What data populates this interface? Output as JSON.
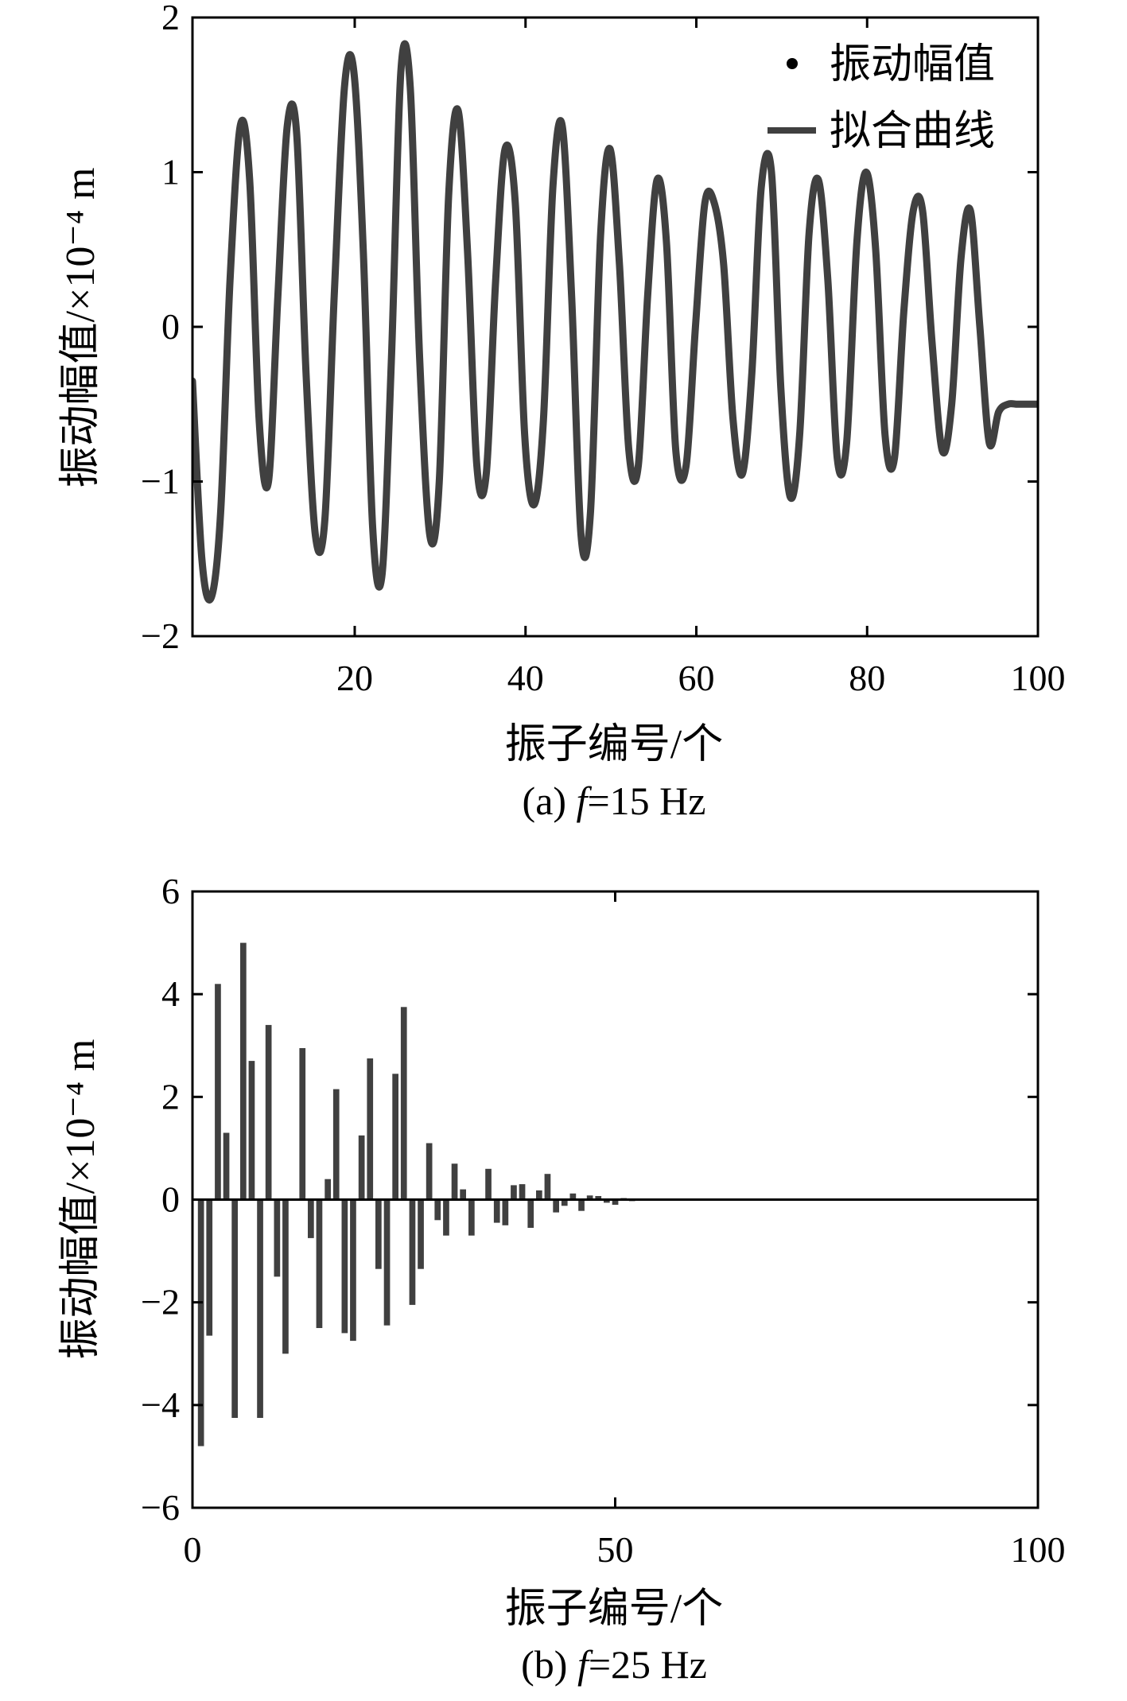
{
  "chart_data": [
    {
      "type": "line",
      "xlabel": "振子编号/个",
      "ylabel": "振动幅值/×10⁻⁴ m",
      "caption": {
        "prefix": "(a) ",
        "var": "f",
        "suffix": "=15 Hz"
      },
      "xlim": [
        1,
        100
      ],
      "ylim": [
        -2,
        2
      ],
      "xticks": [
        20,
        40,
        60,
        80,
        100
      ],
      "yticks": [
        -2,
        -1,
        0,
        1,
        2
      ],
      "grid": false,
      "legend": {
        "position": "top-right",
        "entries": [
          "振动幅值",
          "拟合曲线"
        ]
      },
      "series": [
        {
          "name": "拟合曲线",
          "color": "#404040",
          "x": [
            1,
            2.1,
            3.2,
            4.3,
            5.4,
            6.6,
            7.7,
            8.8,
            9.9,
            11.0,
            12.1,
            13.2,
            14.3,
            15.4,
            16.5,
            17.6,
            18.8,
            19.9,
            21.0,
            22.1,
            23.2,
            24.3,
            25.4,
            26.5,
            27.6,
            28.8,
            29.9,
            31.0,
            32.1,
            33.2,
            34.3,
            35.4,
            36.5,
            37.6,
            38.8,
            39.9,
            41.0,
            42.1,
            43.2,
            44.3,
            45.4,
            46.5,
            47.6,
            48.8,
            49.9,
            51.0,
            52.1,
            53.2,
            54.3,
            55.4,
            56.5,
            57.6,
            58.8,
            59.9,
            61.0,
            62.1,
            63.2,
            64.3,
            65.4,
            66.5,
            67.6,
            68.8,
            69.9,
            71.0,
            72.1,
            73.2,
            74.3,
            75.4,
            76.5,
            77.6,
            78.8,
            79.9,
            81.0,
            82.1,
            83.2,
            84.3,
            85.4,
            86.5,
            87.6,
            88.8,
            89.9,
            91.0,
            92.1,
            93.2,
            94.3,
            95.4,
            96.5,
            97.6,
            98.8,
            99.9
          ],
          "values": [
            -0.35,
            -1.5,
            -1.75,
            -1.2,
            0.3,
            1.3,
            0.95,
            -0.6,
            -1.0,
            0.2,
            1.3,
            1.25,
            -0.3,
            -1.35,
            -1.25,
            0.2,
            1.55,
            1.65,
            0.5,
            -1.3,
            -1.6,
            -0.2,
            1.65,
            1.55,
            -0.2,
            -1.35,
            -1.0,
            0.85,
            1.4,
            0.5,
            -0.9,
            -0.95,
            0.3,
            1.15,
            0.8,
            -0.7,
            -1.15,
            -0.6,
            0.9,
            1.3,
            0.2,
            -1.35,
            -1.2,
            0.6,
            1.15,
            0.4,
            -0.8,
            -0.9,
            0.2,
            0.95,
            0.55,
            -0.8,
            -0.9,
            0.0,
            0.8,
            0.8,
            0.4,
            -0.6,
            -0.95,
            -0.3,
            0.9,
            1.0,
            -0.4,
            -1.1,
            -0.7,
            0.6,
            0.95,
            0.3,
            -0.85,
            -0.75,
            0.55,
            1.0,
            0.5,
            -0.7,
            -0.85,
            0.1,
            0.75,
            0.75,
            -0.1,
            -0.8,
            -0.5,
            0.45,
            0.75,
            0.0,
            -0.75,
            -0.55,
            -0.5,
            -0.5,
            -0.5,
            -0.5
          ]
        }
      ]
    },
    {
      "type": "bar",
      "xlabel": "振子编号/个",
      "ylabel": "振动幅值/×10⁻⁴ m",
      "caption": {
        "prefix": "(b) ",
        "var": "f",
        "suffix": "=25 Hz"
      },
      "xlim": [
        0,
        100
      ],
      "ylim": [
        -6,
        6
      ],
      "xticks": [
        0,
        50,
        100
      ],
      "yticks": [
        -6,
        -4,
        -2,
        0,
        2,
        4,
        6
      ],
      "grid": false,
      "series": [
        {
          "color": "#404040",
          "x": [
            1,
            2,
            3,
            4,
            5,
            6,
            7,
            8,
            9,
            10,
            11,
            12,
            13,
            14,
            15,
            16,
            17,
            18,
            19,
            20,
            21,
            22,
            23,
            24,
            25,
            26,
            27,
            28,
            29,
            30,
            31,
            32,
            33,
            34,
            35,
            36,
            37,
            38,
            39,
            40,
            41,
            42,
            43,
            44,
            45,
            46,
            47,
            48,
            49,
            50,
            51,
            52,
            53,
            54,
            55,
            56,
            57,
            58,
            59,
            60,
            61,
            62,
            63,
            64,
            65,
            66,
            67,
            68,
            69,
            70,
            71,
            72,
            73,
            74,
            75,
            76,
            77,
            78,
            79,
            80
          ],
          "values": [
            -4.8,
            -2.65,
            4.2,
            1.3,
            -4.25,
            5.0,
            2.7,
            -4.25,
            3.4,
            -1.5,
            -3.0,
            0.0,
            2.95,
            -0.75,
            -2.5,
            0.4,
            2.15,
            -2.6,
            -2.75,
            1.25,
            2.75,
            -1.35,
            -2.45,
            2.45,
            3.75,
            -2.05,
            -1.35,
            1.1,
            -0.4,
            -0.7,
            0.7,
            0.2,
            -0.7,
            0.0,
            0.6,
            -0.45,
            -0.5,
            0.28,
            0.3,
            -0.55,
            0.18,
            0.5,
            -0.25,
            -0.12,
            0.12,
            -0.22,
            0.08,
            0.07,
            -0.06,
            -0.1,
            0.03,
            -0.03,
            0.02,
            0.01,
            -0.02,
            0.02,
            0.01,
            -0.01,
            0.01,
            0.01,
            -0.01,
            0.01,
            0.01,
            -0.01,
            0.01,
            0.01,
            -0.01,
            0.01,
            0.01,
            -0.01,
            0.01,
            0.01,
            -0.01,
            0.01,
            0.01,
            -0.01,
            0.01,
            0.01,
            -0.01,
            0.01
          ]
        }
      ]
    }
  ]
}
